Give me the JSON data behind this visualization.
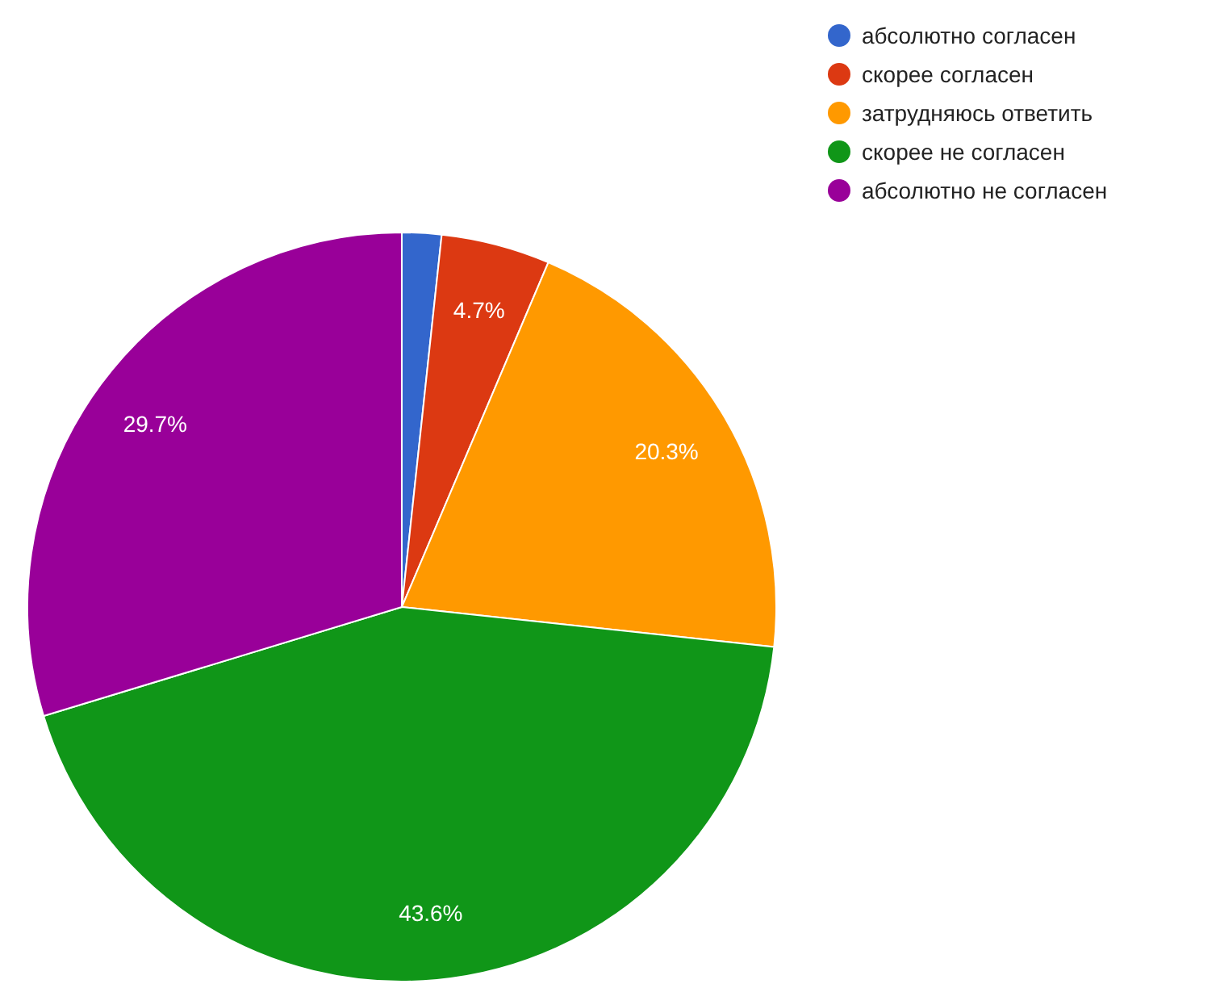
{
  "chart_data": {
    "type": "pie",
    "categories": [
      "абсолютно согласен",
      "скорее согласен",
      "затрудняюсь ответить",
      "скорее не согласен",
      "абсолютно не согласен"
    ],
    "values": [
      1.7,
      4.7,
      20.3,
      43.6,
      29.7
    ],
    "value_labels": [
      null,
      "4.7%",
      "20.3%",
      "43.6%",
      "29.7%"
    ],
    "colors": [
      "#3366cc",
      "#dc3912",
      "#ff9900",
      "#109618",
      "#990099"
    ],
    "legend": "top right"
  }
}
